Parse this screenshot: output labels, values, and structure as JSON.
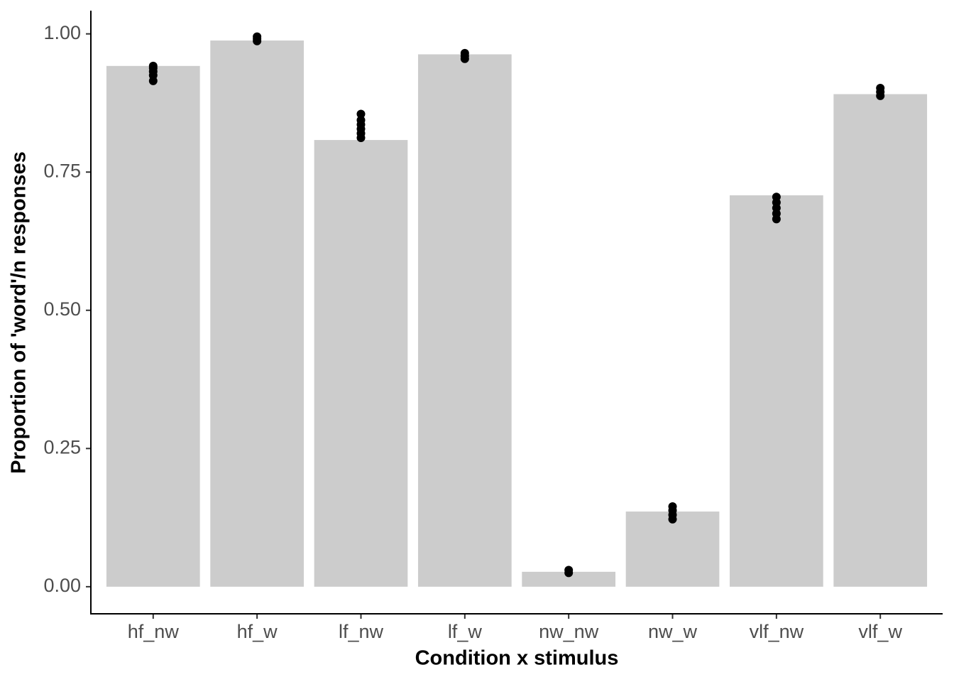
{
  "chart_data": {
    "type": "bar",
    "x_label": "Condition x stimulus",
    "y_label": "Proportion of 'word'/n responses",
    "categories": [
      "hf_nw",
      "hf_w",
      "lf_nw",
      "lf_w",
      "nw_nw",
      "nw_w",
      "vlf_nw",
      "vlf_w"
    ],
    "values": [
      0.942,
      0.988,
      0.808,
      0.963,
      0.027,
      0.136,
      0.708,
      0.891
    ],
    "color": "#cccccc",
    "point_color": "#000000",
    "point_values": [
      [
        0.915,
        0.925,
        0.932,
        0.938,
        0.942
      ],
      [
        0.987,
        0.991,
        0.995
      ],
      [
        0.812,
        0.82,
        0.828,
        0.836,
        0.844,
        0.855
      ],
      [
        0.955,
        0.96,
        0.965
      ],
      [
        0.025,
        0.03
      ],
      [
        0.122,
        0.13,
        0.138,
        0.145
      ],
      [
        0.665,
        0.675,
        0.685,
        0.695,
        0.705
      ],
      [
        0.888,
        0.895,
        0.902
      ]
    ],
    "ylim": [
      -0.049,
      1.042
    ],
    "yticks": [
      {
        "value": 0,
        "label": "0.00"
      },
      {
        "value": 0.25,
        "label": "0.25"
      },
      {
        "value": 0.5,
        "label": "0.50"
      },
      {
        "value": 0.75,
        "label": "0.75"
      },
      {
        "value": 1,
        "label": "1.00"
      }
    ],
    "grid": false
  }
}
